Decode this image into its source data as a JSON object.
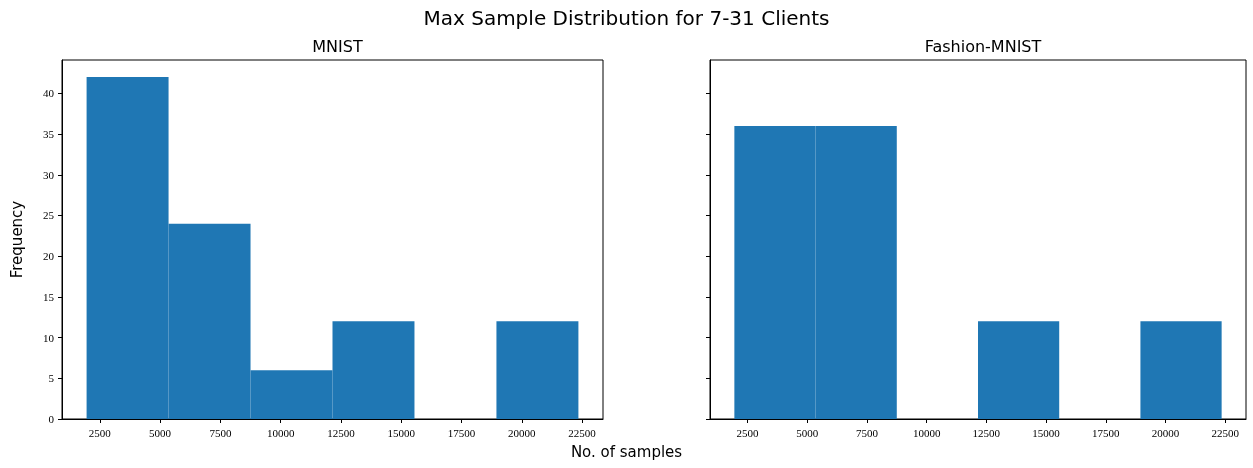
{
  "chart_data": [
    {
      "type": "histogram",
      "title": "MNIST",
      "annotations": [
        "Max Sample Distribution for 7-31 Clients"
      ],
      "xlabel": "No. of samples",
      "ylabel": "Frequency",
      "color": "#1f77b4",
      "bins": [
        1950,
        5350,
        8750,
        12150,
        15550,
        18950,
        22350
      ],
      "values": [
        42,
        24,
        6,
        12,
        0,
        12
      ],
      "xlim": [
        930,
        23370
      ],
      "xticks": [
        2500,
        5000,
        7500,
        10000,
        12500,
        15000,
        17500,
        20000,
        22500
      ],
      "ylim": [
        0,
        44.1
      ],
      "yticks": [
        0,
        5,
        10,
        15,
        20,
        25,
        30,
        35,
        40
      ],
      "grid": false
    },
    {
      "type": "histogram",
      "title": "Fashion-MNIST",
      "color": "#1f77b4",
      "bins": [
        1950,
        5350,
        8750,
        12150,
        15550,
        18950,
        22350
      ],
      "values": [
        36,
        36,
        0,
        12,
        0,
        12
      ],
      "xlim": [
        930,
        23370
      ],
      "xticks": [
        2500,
        5000,
        7500,
        10000,
        12500,
        15000,
        17500,
        20000,
        22500
      ],
      "ylim": [
        0,
        44.1
      ],
      "yticks": [
        0,
        5,
        10,
        15,
        20,
        25,
        30,
        35,
        40
      ],
      "grid": false,
      "tick_labels": "x"
    }
  ]
}
